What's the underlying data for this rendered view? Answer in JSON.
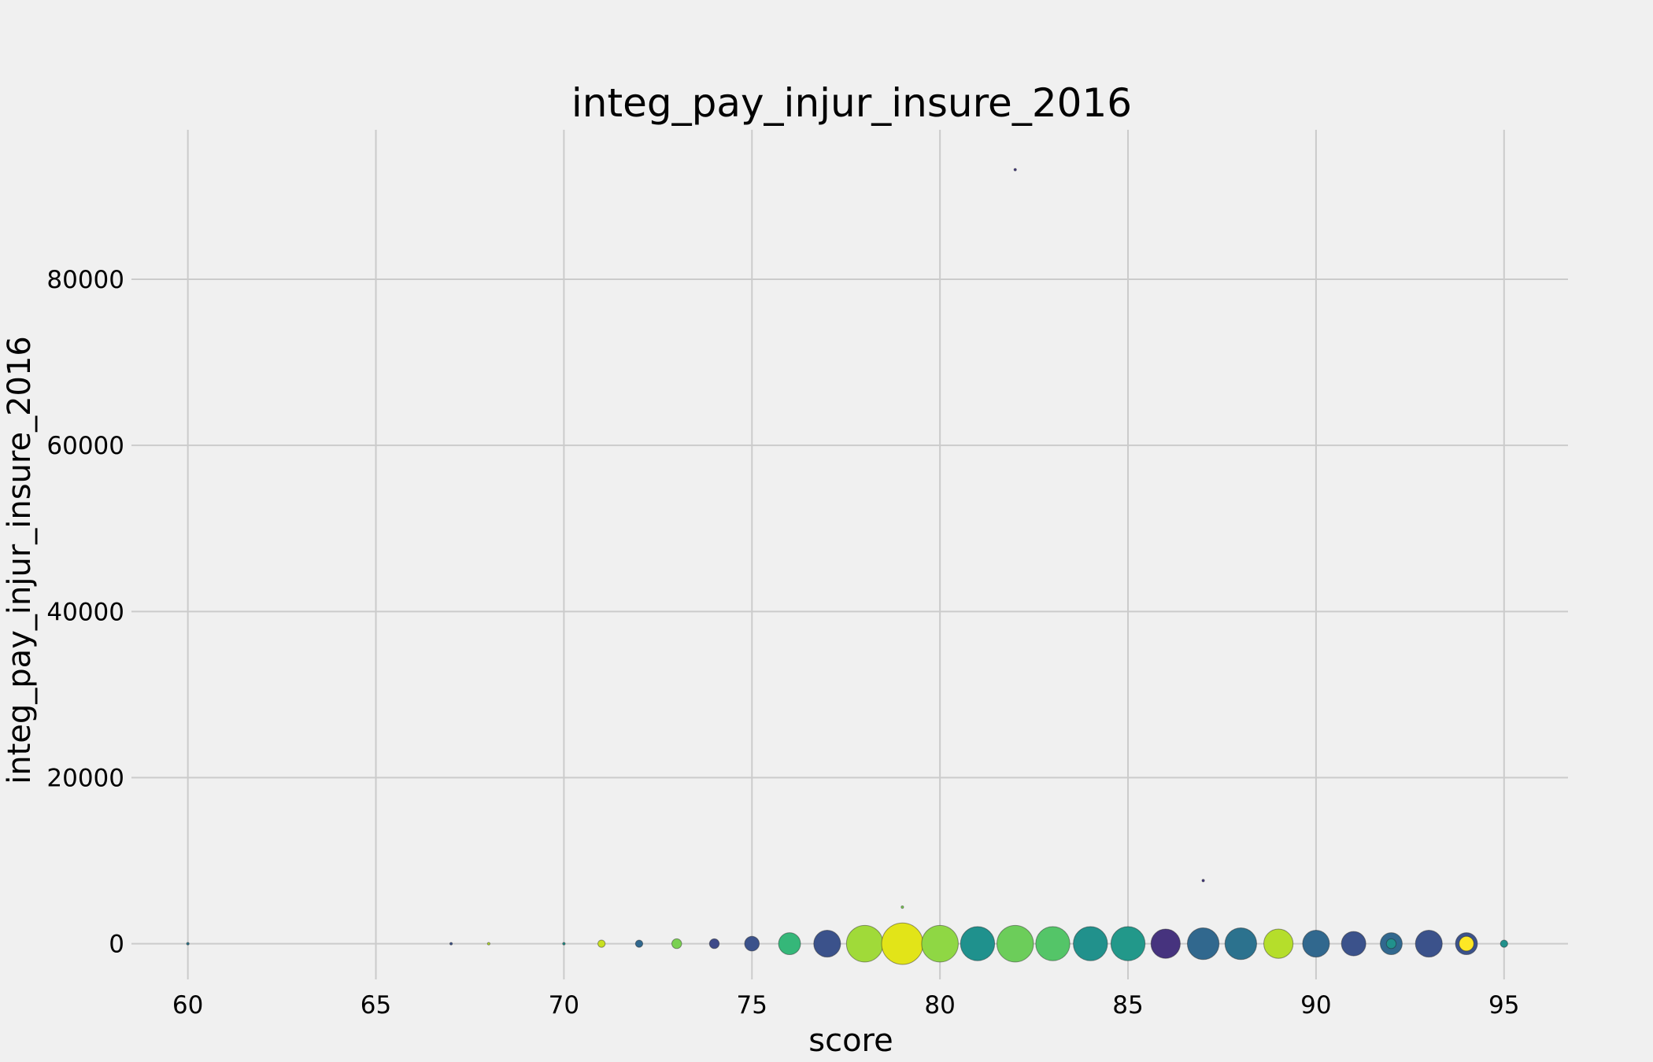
{
  "chart_data": {
    "type": "scatter",
    "title": "integ_pay_injur_insure_2016",
    "xlabel": "score",
    "ylabel": "integ_pay_injur_insure_2016",
    "xlim": [
      58.5,
      96.7
    ],
    "ylim": [
      -4300,
      98000
    ],
    "xticks": [
      60,
      65,
      70,
      75,
      80,
      85,
      90,
      95
    ],
    "yticks": [
      0,
      20000,
      40000,
      60000,
      80000
    ],
    "grid": true,
    "legend": "none",
    "background": "#f0f0f0",
    "points": [
      {
        "x": 60,
        "y": 0,
        "size": 1,
        "color": "#2a788e"
      },
      {
        "x": 67,
        "y": 0,
        "size": 1,
        "color": "#3b528b"
      },
      {
        "x": 68,
        "y": 0,
        "size": 1,
        "color": "#b5de2b"
      },
      {
        "x": 70,
        "y": 0,
        "size": 1,
        "color": "#21918c"
      },
      {
        "x": 71,
        "y": 0,
        "size": 3,
        "color": "#c8e020"
      },
      {
        "x": 72,
        "y": 0,
        "size": 3,
        "color": "#31688e"
      },
      {
        "x": 73,
        "y": 0,
        "size": 4,
        "color": "#7ad151"
      },
      {
        "x": 74,
        "y": 0,
        "size": 4,
        "color": "#3e4a89"
      },
      {
        "x": 75,
        "y": 0,
        "size": 6,
        "color": "#3b528b"
      },
      {
        "x": 76,
        "y": 0,
        "size": 9,
        "color": "#35b779"
      },
      {
        "x": 77,
        "y": 0,
        "size": 11,
        "color": "#3b528b"
      },
      {
        "x": 78,
        "y": 0,
        "size": 15,
        "color": "#a0da39"
      },
      {
        "x": 79,
        "y": 0,
        "size": 17,
        "color": "#e2e418"
      },
      {
        "x": 79,
        "y": 4400,
        "size": 1,
        "color": "#7ad151"
      },
      {
        "x": 80,
        "y": 0,
        "size": 15,
        "color": "#8fd744"
      },
      {
        "x": 81,
        "y": 0,
        "size": 14,
        "color": "#1f918d"
      },
      {
        "x": 82,
        "y": 0,
        "size": 15,
        "color": "#6ccd5a"
      },
      {
        "x": 82,
        "y": 93200,
        "size": 1,
        "color": "#443983"
      },
      {
        "x": 83,
        "y": 0,
        "size": 14,
        "color": "#54c568"
      },
      {
        "x": 84,
        "y": 0,
        "size": 14,
        "color": "#21918c"
      },
      {
        "x": 85,
        "y": 0,
        "size": 14,
        "color": "#22988a"
      },
      {
        "x": 86,
        "y": 0,
        "size": 12,
        "color": "#46337e"
      },
      {
        "x": 87,
        "y": 0,
        "size": 13,
        "color": "#31688e"
      },
      {
        "x": 87,
        "y": 7600,
        "size": 1,
        "color": "#443983"
      },
      {
        "x": 88,
        "y": 0,
        "size": 13,
        "color": "#2c728e"
      },
      {
        "x": 89,
        "y": 0,
        "size": 12,
        "color": "#b5de2b"
      },
      {
        "x": 90,
        "y": 0,
        "size": 11,
        "color": "#31688e"
      },
      {
        "x": 91,
        "y": 0,
        "size": 10,
        "color": "#3b528b"
      },
      {
        "x": 92,
        "y": 0,
        "size": 9,
        "color": "#31688e"
      },
      {
        "x": 92,
        "y": 0,
        "size": 4,
        "color": "#21918c"
      },
      {
        "x": 93,
        "y": 0,
        "size": 11,
        "color": "#3b528b"
      },
      {
        "x": 94,
        "y": 0,
        "size": 9,
        "color": "#3b528b"
      },
      {
        "x": 94,
        "y": 0,
        "size": 6,
        "color": "#fde725"
      },
      {
        "x": 95,
        "y": 0,
        "size": 3,
        "color": "#21918c"
      }
    ]
  }
}
